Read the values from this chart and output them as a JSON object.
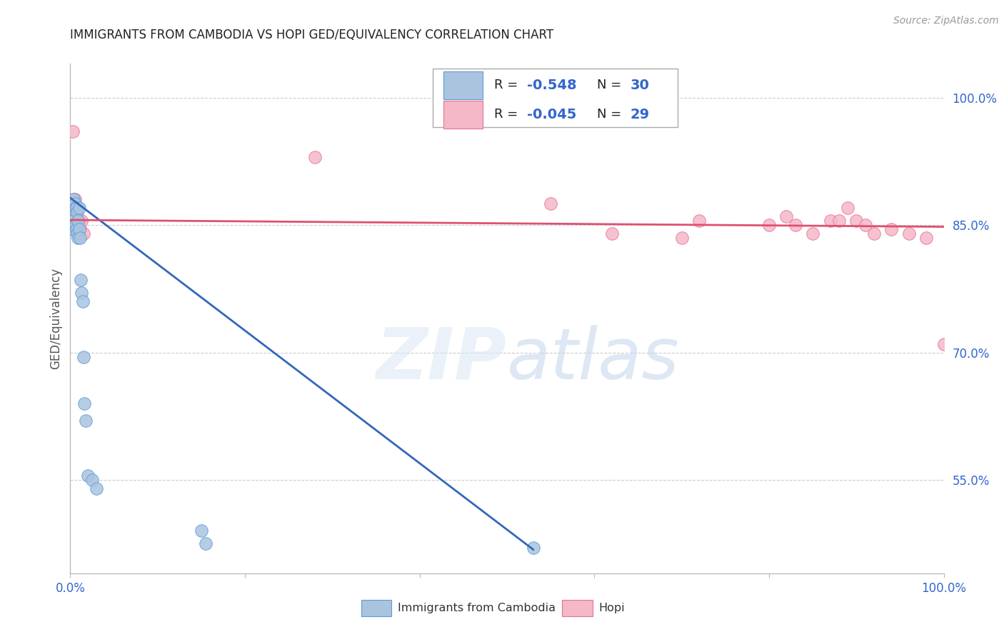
{
  "title": "IMMIGRANTS FROM CAMBODIA VS HOPI GED/EQUIVALENCY CORRELATION CHART",
  "source": "Source: ZipAtlas.com",
  "ylabel": "GED/Equivalency",
  "right_yticks": [
    "55.0%",
    "70.0%",
    "85.0%",
    "100.0%"
  ],
  "right_ytick_vals": [
    0.55,
    0.7,
    0.85,
    1.0
  ],
  "watermark": "ZIPatlas",
  "legend_cambodia_r": "-0.548",
  "legend_cambodia_n": "30",
  "legend_hopi_r": "-0.045",
  "legend_hopi_n": "29",
  "cambodia_color": "#aac4e0",
  "cambodia_edge": "#5b9bd5",
  "hopi_color": "#f4b8c8",
  "hopi_edge": "#e87090",
  "cambodia_line_color": "#3366bb",
  "hopi_line_color": "#e05070",
  "background": "#ffffff",
  "grid_color": "#cccccc",
  "xlim": [
    0.0,
    1.0
  ],
  "ylim": [
    0.44,
    1.04
  ],
  "xtick_positions": [
    0.0,
    0.2,
    0.4,
    0.6,
    0.8,
    1.0
  ],
  "cambodia_x": [
    0.003,
    0.003,
    0.003,
    0.004,
    0.004,
    0.005,
    0.005,
    0.006,
    0.006,
    0.007,
    0.007,
    0.008,
    0.008,
    0.009,
    0.009,
    0.01,
    0.01,
    0.011,
    0.012,
    0.013,
    0.014,
    0.015,
    0.016,
    0.018,
    0.02,
    0.025,
    0.03,
    0.15,
    0.155,
    0.53
  ],
  "cambodia_y": [
    0.87,
    0.855,
    0.845,
    0.88,
    0.855,
    0.875,
    0.85,
    0.87,
    0.85,
    0.87,
    0.845,
    0.865,
    0.84,
    0.855,
    0.835,
    0.87,
    0.845,
    0.835,
    0.785,
    0.77,
    0.76,
    0.695,
    0.64,
    0.62,
    0.555,
    0.55,
    0.54,
    0.49,
    0.475,
    0.47
  ],
  "hopi_x": [
    0.003,
    0.004,
    0.005,
    0.007,
    0.008,
    0.009,
    0.01,
    0.011,
    0.013,
    0.015,
    0.28,
    0.55,
    0.62,
    0.7,
    0.72,
    0.8,
    0.82,
    0.83,
    0.85,
    0.87,
    0.88,
    0.89,
    0.9,
    0.91,
    0.92,
    0.94,
    0.96,
    0.98,
    1.0
  ],
  "hopi_y": [
    0.96,
    0.88,
    0.88,
    0.87,
    0.87,
    0.855,
    0.855,
    0.845,
    0.855,
    0.84,
    0.93,
    0.875,
    0.84,
    0.835,
    0.855,
    0.85,
    0.86,
    0.85,
    0.84,
    0.855,
    0.855,
    0.87,
    0.855,
    0.85,
    0.84,
    0.845,
    0.84,
    0.835,
    0.71
  ],
  "cam_line_x": [
    0.0,
    0.53
  ],
  "cam_line_y": [
    0.882,
    0.468
  ],
  "hopi_line_x": [
    0.0,
    1.0
  ],
  "hopi_line_y": [
    0.856,
    0.848
  ]
}
